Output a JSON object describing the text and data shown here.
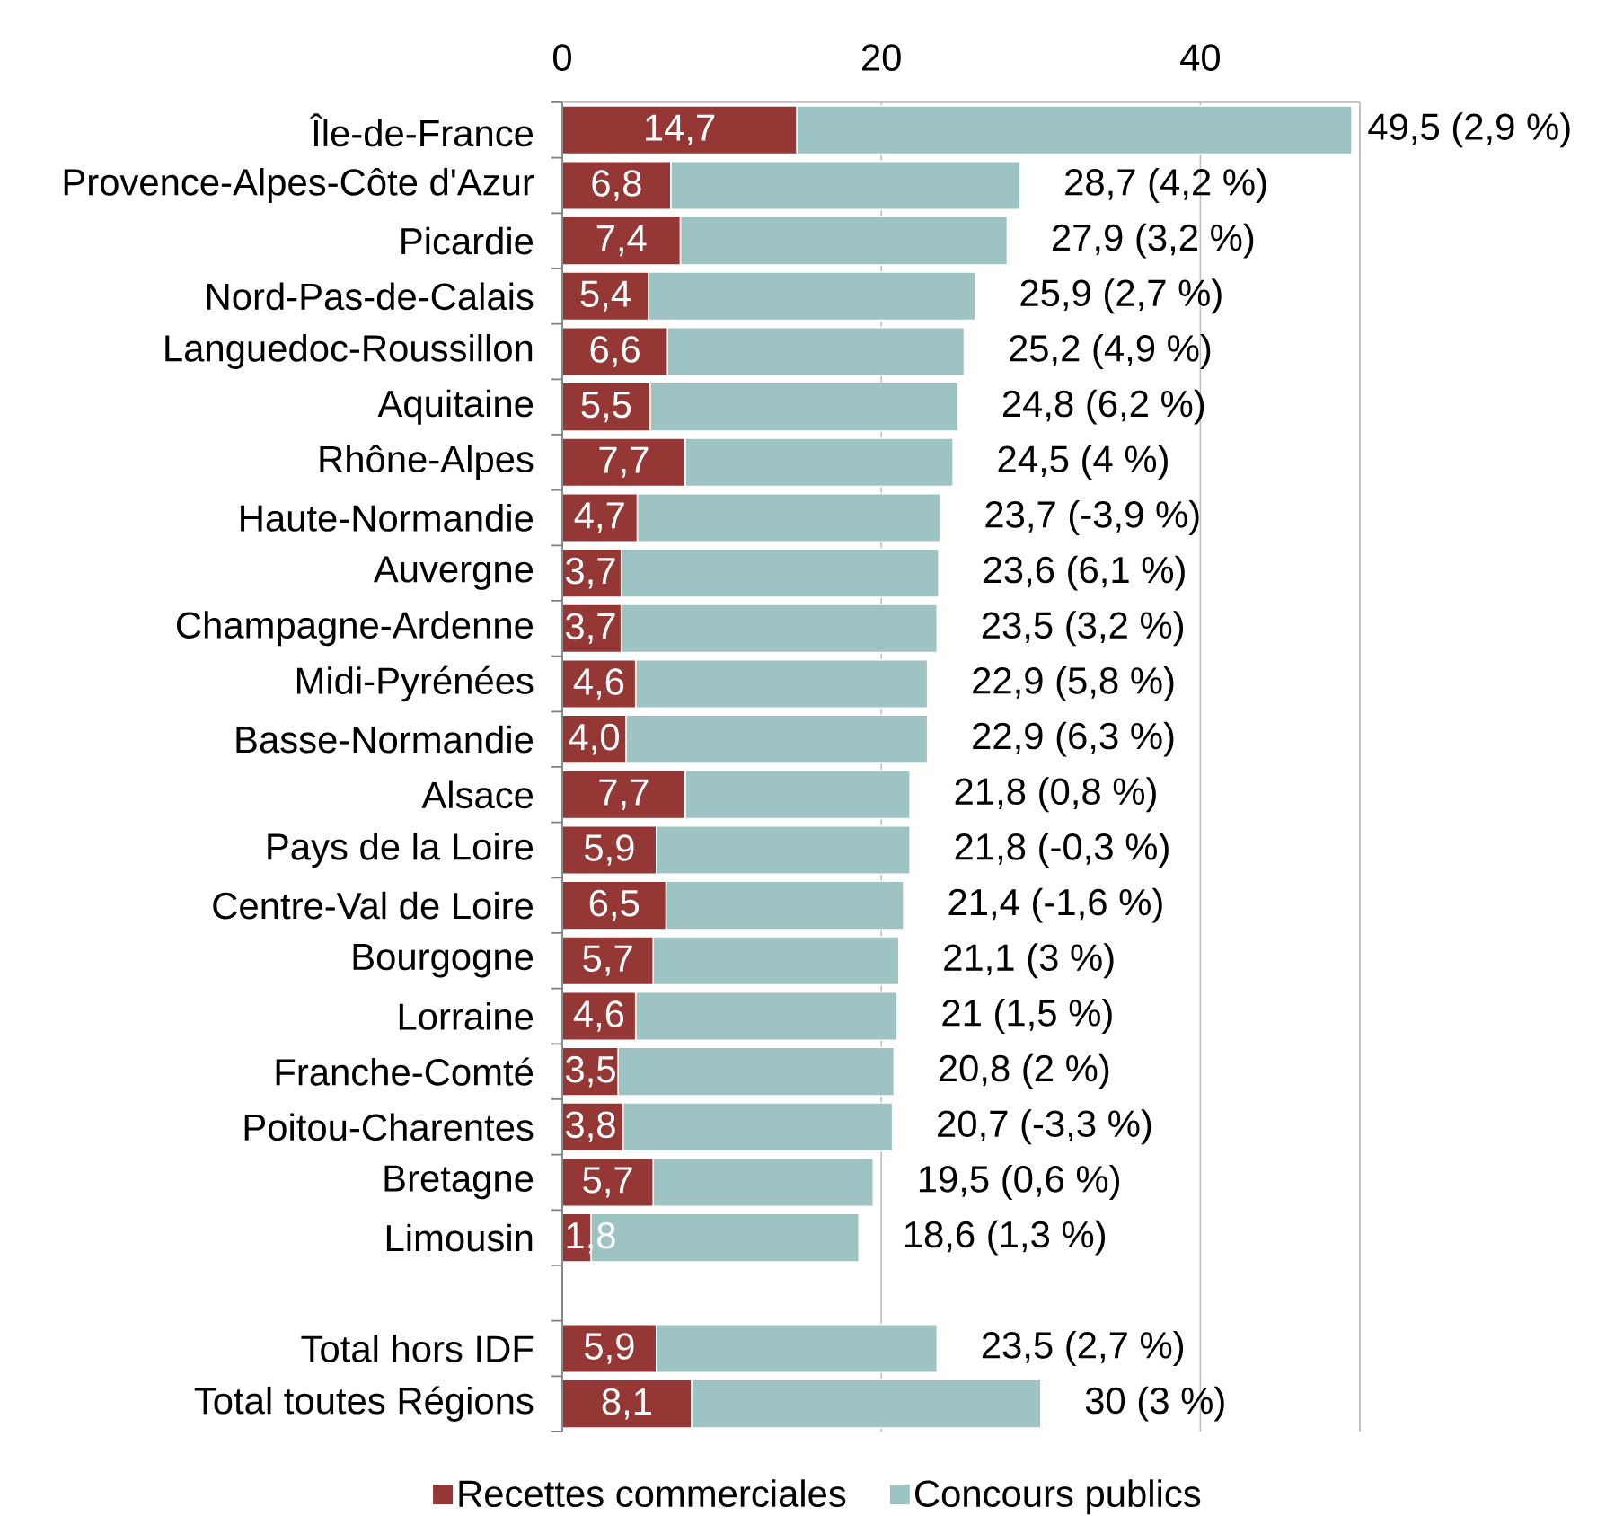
{
  "chart_data": {
    "type": "bar",
    "orientation": "horizontal",
    "stacked": true,
    "categories": [
      "Île-de-France",
      "Provence-Alpes-Côte d'Azur",
      "Picardie",
      "Nord-Pas-de-Calais",
      "Languedoc-Roussillon",
      "Aquitaine",
      "Rhône-Alpes",
      "Haute-Normandie",
      "Auvergne",
      "Champagne-Ardenne",
      "Midi-Pyrénées",
      "Basse-Normandie",
      "Alsace",
      "Pays de la Loire",
      "Centre-Val de Loire",
      "Bourgogne",
      "Lorraine",
      "Franche-Comté",
      "Poitou-Charentes",
      "Bretagne",
      "Limousin",
      null,
      "Total hors IDF",
      "Total toutes Régions"
    ],
    "series": [
      {
        "name": "Recettes commerciales",
        "color": "#953735",
        "values": [
          14.7,
          6.8,
          7.4,
          5.4,
          6.6,
          5.5,
          7.7,
          4.7,
          3.7,
          3.7,
          4.6,
          4.0,
          7.7,
          5.9,
          6.5,
          5.7,
          4.6,
          3.5,
          3.8,
          5.7,
          1.8,
          null,
          5.9,
          8.1
        ],
        "value_labels": [
          "14,7",
          "6,8",
          "7,4",
          "5,4",
          "6,6",
          "5,5",
          "7,7",
          "4,7",
          "3,7",
          "3,7",
          "4,6",
          "4,0",
          "7,7",
          "5,9",
          "6,5",
          "5,7",
          "4,6",
          "3,5",
          "3,8",
          "5,7",
          "1,8",
          null,
          "5,9",
          "8,1"
        ]
      },
      {
        "name": "Concours publics",
        "color": "#9dc4c2",
        "values": [
          34.8,
          21.9,
          20.5,
          20.5,
          18.6,
          19.3,
          16.8,
          19.0,
          19.9,
          19.8,
          18.3,
          18.9,
          14.1,
          15.9,
          14.9,
          15.4,
          16.4,
          17.3,
          16.9,
          13.8,
          16.8,
          null,
          17.6,
          21.9
        ]
      }
    ],
    "totals": [
      "49,5 (2,9 %)",
      "28,7 (4,2 %)",
      "27,9 (3,2 %)",
      "25,9 (2,7 %)",
      "25,2 (4,9 %)",
      "24,8 (6,2 %)",
      "24,5 (4 %)",
      "23,7 (-3,9 %)",
      "23,6 (6,1 %)",
      "23,5 (3,2 %)",
      "22,9 (5,8 %)",
      "22,9 (6,3 %)",
      "21,8 (0,8 %)",
      "21,8 (-0,3 %)",
      "21,4 (-1,6 %)",
      "21,1 (3 %)",
      "21 (1,5 %)",
      "20,8 (2 %)",
      "20,7 (-3,3 %)",
      "19,5 (0,6 %)",
      "18,6 (1,3 %)",
      null,
      "23,5 (2,7 %)",
      "30 (3 %)"
    ],
    "xlim": [
      0,
      50
    ],
    "xticks": [
      0,
      20,
      40
    ],
    "grid": "x",
    "legend": "bottom"
  }
}
